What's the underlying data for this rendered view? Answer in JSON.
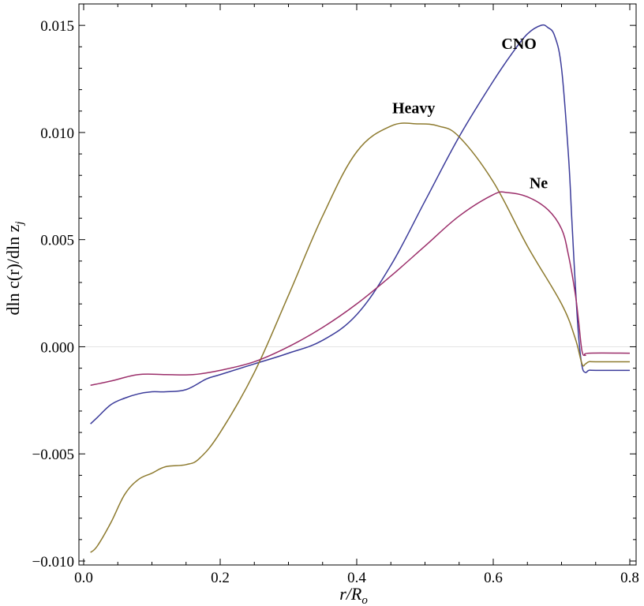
{
  "chart_data": {
    "type": "line",
    "xlabel": "r/R",
    "xlabel_sub": "o",
    "ylabel": "dln c(r)/dln z",
    "ylabel_sub": "j",
    "xlim": [
      0.0,
      0.8
    ],
    "ylim": [
      -0.01,
      0.016
    ],
    "xticks": [
      0.0,
      0.2,
      0.4,
      0.6,
      0.8
    ],
    "xtick_labels": [
      "0.0",
      "0.2",
      "0.4",
      "0.6",
      "0.8"
    ],
    "yticks": [
      -0.01,
      -0.005,
      0.0,
      0.005,
      0.01,
      0.015
    ],
    "ytick_labels": [
      "−0.010",
      "−0.005",
      "0.000",
      "0.005",
      "0.010",
      "0.015"
    ],
    "zero_line": true,
    "grid": false,
    "series": [
      {
        "name": "CNO",
        "color": "#3b3b9a",
        "x": [
          0.01,
          0.02,
          0.04,
          0.06,
          0.08,
          0.1,
          0.12,
          0.15,
          0.18,
          0.2,
          0.25,
          0.3,
          0.35,
          0.4,
          0.45,
          0.5,
          0.55,
          0.6,
          0.63,
          0.65,
          0.67,
          0.68,
          0.69,
          0.7,
          0.71,
          0.715,
          0.72,
          0.725,
          0.73,
          0.735,
          0.74,
          0.75,
          0.8
        ],
        "y": [
          -0.0036,
          -0.0033,
          -0.0027,
          -0.0024,
          -0.0022,
          -0.0021,
          -0.0021,
          -0.002,
          -0.0015,
          -0.0013,
          -0.0008,
          -0.0003,
          0.0003,
          0.0015,
          0.0038,
          0.0068,
          0.0098,
          0.0124,
          0.0138,
          0.0146,
          0.015,
          0.0149,
          0.0145,
          0.013,
          0.009,
          0.006,
          0.003,
          0.0005,
          -0.0009,
          -0.0012,
          -0.0011,
          -0.0011,
          -0.0011
        ]
      },
      {
        "name": "Heavy",
        "color": "#8d7a2e",
        "x": [
          0.01,
          0.02,
          0.04,
          0.06,
          0.08,
          0.1,
          0.12,
          0.15,
          0.17,
          0.2,
          0.25,
          0.3,
          0.35,
          0.4,
          0.45,
          0.49,
          0.52,
          0.55,
          0.6,
          0.65,
          0.7,
          0.72,
          0.73,
          0.735,
          0.74,
          0.75,
          0.8
        ],
        "y": [
          -0.0096,
          -0.0093,
          -0.0082,
          -0.0069,
          -0.0062,
          -0.0059,
          -0.0056,
          -0.0055,
          -0.0052,
          -0.004,
          -0.0012,
          0.0024,
          0.0061,
          0.0091,
          0.0103,
          0.0104,
          0.0103,
          0.0098,
          0.0077,
          0.0047,
          0.002,
          0.0004,
          -0.0008,
          -0.0008,
          -0.0007,
          -0.0007,
          -0.0007
        ]
      },
      {
        "name": "Ne",
        "color": "#9b2e6a",
        "x": [
          0.01,
          0.04,
          0.08,
          0.12,
          0.16,
          0.2,
          0.25,
          0.3,
          0.35,
          0.4,
          0.45,
          0.5,
          0.55,
          0.6,
          0.62,
          0.65,
          0.68,
          0.7,
          0.71,
          0.72,
          0.725,
          0.73,
          0.735,
          0.74,
          0.8
        ],
        "y": [
          -0.0018,
          -0.0016,
          -0.0013,
          -0.0013,
          -0.0013,
          -0.0011,
          -0.0007,
          0.0,
          0.0009,
          0.002,
          0.0033,
          0.0047,
          0.0061,
          0.0071,
          0.0072,
          0.007,
          0.0064,
          0.0055,
          0.0043,
          0.0025,
          0.0012,
          -0.0002,
          -0.0004,
          -0.0003,
          -0.0003
        ]
      }
    ],
    "annotations": [
      {
        "text": "CNO",
        "series": "CNO",
        "x": 0.612,
        "y": 0.0139
      },
      {
        "text": "Heavy",
        "series": "Heavy",
        "x": 0.452,
        "y": 0.0109
      },
      {
        "text": "Ne",
        "series": "Ne",
        "x": 0.653,
        "y": 0.0074
      }
    ]
  }
}
